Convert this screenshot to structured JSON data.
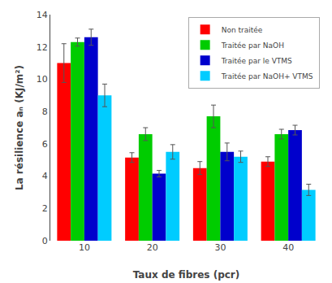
{
  "chart_data": {
    "type": "bar",
    "categories": [
      "10",
      "20",
      "30",
      "40"
    ],
    "series": [
      {
        "name": "Non traitée",
        "color": "#FF0000",
        "values": [
          11.0,
          5.15,
          4.5,
          4.9
        ],
        "errors": [
          1.2,
          0.3,
          0.4,
          0.3
        ]
      },
      {
        "name": "Traitée par NaOH",
        "color": "#00CC00",
        "values": [
          12.3,
          6.6,
          7.7,
          6.6
        ],
        "errors": [
          0.25,
          0.4,
          0.7,
          0.3
        ]
      },
      {
        "name": "Traitée par le VTMS",
        "color": "#0000CC",
        "values": [
          12.6,
          4.15,
          5.5,
          6.85
        ],
        "errors": [
          0.5,
          0.2,
          0.55,
          0.3
        ]
      },
      {
        "name": "Traitée par NaOH+ VTMS",
        "color": "#00CCFF",
        "values": [
          9.0,
          5.5,
          5.2,
          3.15
        ],
        "errors": [
          0.7,
          0.45,
          0.35,
          0.35
        ]
      }
    ],
    "xlabel": "Taux de fibres (pcr)",
    "ylabel": "La résilience aₙ (KJ/m²)",
    "ylim": [
      0,
      14
    ],
    "yticks": [
      0,
      2,
      4,
      6,
      8,
      10,
      12,
      14
    ],
    "legend": "upper right",
    "grid": false
  }
}
